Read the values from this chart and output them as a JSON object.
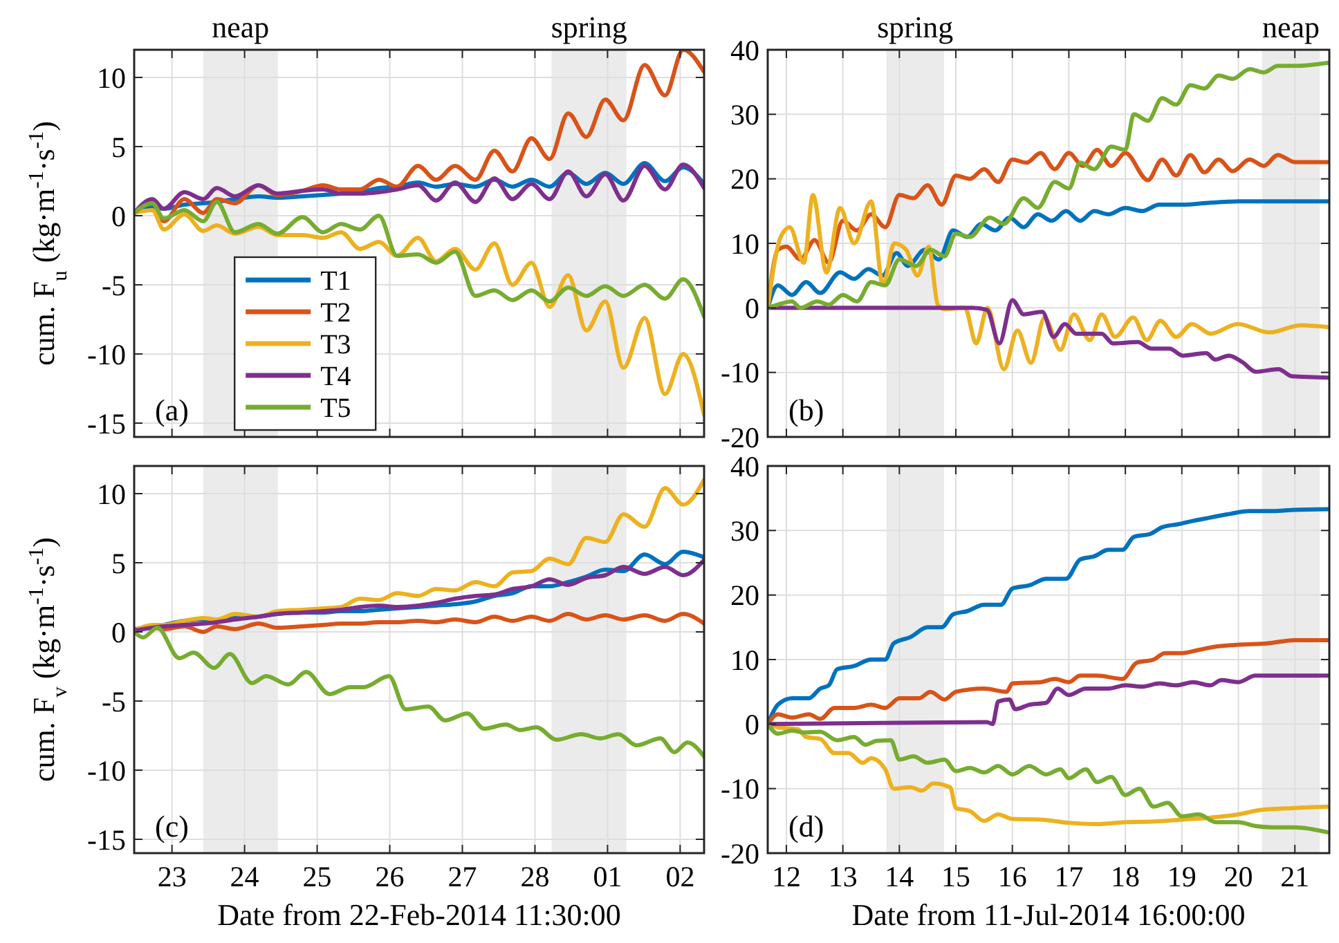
{
  "chart_data": [
    {
      "type": "line",
      "ylabel": "cum. F$_{u}$ (kg·m$^{-1}$·s$^{-1}$)",
      "annotations": [
        "(a)"
      ],
      "grid": true,
      "legend": "bottom",
      "tick_labels": "y",
      "xlim": [
        "2014-02-22T11:30",
        "2014-03-02T07:55"
      ],
      "xticks": [
        {
          "value": "2014-02-23",
          "label": null
        },
        {
          "value": "2014-02-24",
          "label": null
        },
        {
          "value": "2014-02-25",
          "label": null
        },
        {
          "value": "2014-02-26",
          "label": null
        },
        {
          "value": "2014-02-27",
          "label": null
        },
        {
          "value": "2014-02-28",
          "label": null
        },
        {
          "value": "2014-03-01",
          "label": null
        },
        {
          "value": "2014-03-02",
          "label": null
        }
      ],
      "ylim": [
        -16,
        12
      ],
      "yticks": [
        -15,
        -10,
        -5,
        0,
        5,
        10
      ],
      "bands": [
        {
          "axis": "x",
          "from": "2014-02-23T10:20",
          "to": "2014-02-24T11:00",
          "label": "neap",
          "color": "#ebebeb"
        },
        {
          "axis": "x",
          "from": "2014-02-28T05:30",
          "to": "2014-03-01T06:15",
          "label": "spring",
          "color": "#ebebeb"
        }
      ],
      "x": [
        "2014-02-22T11:30",
        "2014-02-22T17:30",
        "2014-02-22T21:20",
        "2014-02-23T04:05",
        "2014-02-23T10:20",
        "2014-02-23T14:50",
        "2014-02-23T20:50",
        "2014-02-24T04:35",
        "2014-02-24T10:50",
        "2014-02-24T19:10",
        "2014-02-25T01:55",
        "2014-02-25T07:55",
        "2014-02-25T14:10",
        "2014-02-25T20:25",
        "2014-02-26T02:25",
        "2014-02-26T09:20",
        "2014-02-26T15:20",
        "2014-02-26T21:35",
        "2014-02-27T04:20",
        "2014-02-27T10:35",
        "2014-02-27T16:35",
        "2014-02-27T22:50",
        "2014-02-28T04:50",
        "2014-02-28T11:00",
        "2014-02-28T17:00",
        "2014-02-28T23:15",
        "2014-03-01T05:15",
        "2014-03-01T12:15",
        "2014-03-01T19:00",
        "2014-03-02T01:00",
        "2014-03-02T07:55"
      ],
      "series": [
        {
          "name": "T1",
          "color": "#0072bd",
          "values": [
            0.2,
            0.6,
            0.5,
            0.8,
            0.9,
            1.0,
            1.2,
            1.4,
            1.3,
            1.4,
            1.5,
            1.6,
            1.7,
            2.0,
            2.1,
            2.4,
            2.1,
            2.3,
            2.1,
            2.6,
            2.1,
            2.6,
            2.1,
            3.1,
            2.3,
            3.1,
            2.3,
            3.8,
            2.5,
            3.5,
            2.3
          ]
        },
        {
          "name": "T2",
          "color": "#d95319",
          "values": [
            0.2,
            0.9,
            -0.4,
            1.2,
            0.2,
            1.2,
            0.9,
            2.2,
            1.5,
            1.8,
            2.2,
            1.9,
            1.9,
            2.6,
            2.1,
            3.6,
            2.6,
            3.6,
            2.6,
            4.7,
            3.2,
            5.6,
            4.1,
            7.4,
            5.7,
            8.4,
            6.9,
            10.9,
            8.7,
            12.0,
            10.4
          ]
        },
        {
          "name": "T3",
          "color": "#edb120",
          "values": [
            0.2,
            0.4,
            -1.0,
            0.1,
            -1.1,
            -0.7,
            -1.3,
            -0.8,
            -1.4,
            -1.4,
            -1.6,
            -1.2,
            -2.4,
            -1.9,
            -2.9,
            -1.6,
            -3.3,
            -2.4,
            -3.9,
            -2.0,
            -5.0,
            -3.4,
            -6.6,
            -4.3,
            -8.3,
            -6.2,
            -11.0,
            -7.4,
            -12.9,
            -10.0,
            -14.4
          ]
        },
        {
          "name": "T4",
          "color": "#7e2f8e",
          "values": [
            0.2,
            1.2,
            0.5,
            1.7,
            1.2,
            2.0,
            1.4,
            2.2,
            1.6,
            1.8,
            1.9,
            1.6,
            1.6,
            1.7,
            1.9,
            2.2,
            1.1,
            2.4,
            1.0,
            2.7,
            1.2,
            2.3,
            1.2,
            3.2,
            1.4,
            3.0,
            1.1,
            3.6,
            1.9,
            3.7,
            2.0
          ]
        },
        {
          "name": "T5",
          "color": "#77ac30",
          "values": [
            0.2,
            0.9,
            -0.2,
            0.4,
            -0.4,
            1.0,
            -1.2,
            -0.6,
            -1.3,
            -0.1,
            -1.2,
            -0.6,
            -1.0,
            0.0,
            -2.9,
            -2.8,
            -3.4,
            -2.6,
            -5.8,
            -5.4,
            -6.1,
            -5.4,
            -6.2,
            -5.2,
            -5.8,
            -5.1,
            -5.8,
            -5.0,
            -6.0,
            -4.6,
            -7.3
          ]
        }
      ]
    },
    {
      "type": "line",
      "annotations": [
        "(b)"
      ],
      "grid": true,
      "tick_labels": "y",
      "xlim": [
        11.67,
        21.61
      ],
      "xticks": [
        12,
        13,
        14,
        15,
        16,
        17,
        18,
        19,
        20,
        21
      ],
      "ylim": [
        -20,
        40
      ],
      "yticks": [
        -20,
        -10,
        0,
        10,
        20,
        30,
        40
      ],
      "bands": [
        {
          "axis": "x",
          "from": 13.77,
          "to": 14.79,
          "label": "spring",
          "color": "#ebebeb"
        },
        {
          "axis": "x",
          "from": 20.42,
          "to": 21.44,
          "label": "neap",
          "color": "#ebebeb"
        }
      ],
      "series": [
        {
          "color": "#0072bd",
          "x": [
            11.67,
            11.85,
            12.1,
            12.35,
            12.6,
            12.95,
            13.2,
            13.45,
            13.7,
            13.95,
            14.15,
            14.45,
            14.7,
            14.95,
            15.2,
            15.45,
            15.7,
            15.95,
            16.2,
            16.45,
            16.7,
            16.95,
            17.2,
            17.45,
            17.7,
            18.0,
            18.3,
            18.6,
            19.0,
            19.5,
            20.0,
            20.5,
            21.0,
            21.6
          ],
          "values": [
            0,
            3.5,
            2,
            4,
            2.3,
            5.5,
            4.5,
            6,
            5,
            8.5,
            6.5,
            9,
            7.5,
            12,
            11,
            13,
            12,
            14,
            12.5,
            14.5,
            13.5,
            15,
            13.5,
            15,
            14.5,
            15.5,
            15,
            16,
            16,
            16.3,
            16.5,
            16.5,
            16.5,
            16.5
          ]
        },
        {
          "color": "#d95319",
          "x": [
            11.67,
            11.85,
            12.0,
            12.25,
            12.5,
            12.75,
            13.0,
            13.25,
            13.5,
            13.75,
            14.0,
            14.25,
            14.5,
            14.75,
            15.0,
            15.25,
            15.5,
            15.75,
            16.0,
            16.25,
            16.5,
            16.75,
            17.0,
            17.25,
            17.5,
            17.75,
            18.0,
            18.4,
            18.65,
            18.9,
            19.15,
            19.4,
            19.65,
            19.9,
            20.2,
            20.45,
            20.7,
            21.0,
            21.6
          ],
          "values": [
            0,
            9,
            9.5,
            7.5,
            10.5,
            7,
            13.5,
            12,
            14.5,
            12.5,
            17.5,
            17,
            19,
            16,
            20.5,
            20,
            21.5,
            19.5,
            23,
            22.5,
            24,
            21.5,
            24,
            22,
            24.5,
            22,
            24,
            19.8,
            23,
            20.5,
            23.7,
            21,
            23,
            21.2,
            23,
            22,
            23.7,
            22.6,
            22.6
          ]
        },
        {
          "color": "#edb120",
          "x": [
            11.67,
            11.9,
            12.06,
            12.31,
            12.47,
            12.71,
            12.95,
            13.2,
            13.5,
            13.71,
            13.91,
            14.12,
            14.32,
            14.52,
            14.68,
            14.8,
            15.16,
            15.36,
            15.56,
            15.85,
            16.09,
            16.33,
            16.57,
            16.85,
            17.09,
            17.37,
            17.58,
            17.82,
            18.14,
            18.38,
            18.62,
            18.9,
            19.18,
            19.51,
            19.99,
            20.55,
            21.11,
            21.6
          ],
          "values": [
            0,
            11,
            12.5,
            7,
            17.5,
            5.5,
            15.5,
            10,
            16.5,
            3.5,
            10,
            9,
            5,
            9.5,
            0.5,
            -0.2,
            0,
            -5.5,
            0,
            -9.5,
            -3.5,
            -8.5,
            -1.5,
            -6.5,
            -1,
            -5,
            -1,
            -4.5,
            -1.5,
            -5,
            -2,
            -4.5,
            -2.5,
            -4,
            -2.5,
            -3.8,
            -2.7,
            -3
          ]
        },
        {
          "color": "#7e2f8e",
          "x": [
            11.67,
            15.3,
            15.55,
            15.77,
            16.0,
            16.2,
            16.53,
            16.73,
            16.93,
            17.13,
            17.58,
            17.78,
            18.22,
            18.46,
            18.78,
            19.02,
            19.43,
            19.59,
            19.83,
            20.07,
            20.31,
            20.71,
            20.95,
            21.6
          ],
          "values": [
            0,
            0,
            -0.3,
            -5.5,
            1.2,
            -1,
            -0.6,
            -4.5,
            -2.5,
            -4,
            -4,
            -5.5,
            -5.3,
            -6.3,
            -6.3,
            -7.4,
            -7,
            -8,
            -7.4,
            -8.4,
            -9.9,
            -9.5,
            -10.6,
            -10.8
          ]
        },
        {
          "color": "#77ac30",
          "x": [
            11.67,
            11.85,
            12.1,
            12.25,
            12.55,
            12.75,
            13.0,
            13.25,
            13.5,
            13.75,
            14.0,
            14.3,
            14.55,
            14.8,
            15.0,
            15.25,
            15.6,
            15.85,
            16.2,
            16.45,
            16.75,
            17.0,
            17.2,
            17.45,
            17.75,
            18.0,
            18.15,
            18.4,
            18.65,
            18.9,
            19.15,
            19.4,
            19.65,
            19.9,
            20.2,
            20.45,
            20.7,
            21.0,
            21.6
          ],
          "values": [
            0,
            0.5,
            1,
            0,
            1,
            0.5,
            2,
            1,
            4,
            3.5,
            7.5,
            6.5,
            9,
            8,
            11.5,
            11,
            14,
            13,
            17,
            15.5,
            19.5,
            18.5,
            22.5,
            21.5,
            25,
            24.5,
            30,
            29,
            32.5,
            31.5,
            34.5,
            34,
            36,
            35.5,
            37,
            36.5,
            37.5,
            37.5,
            38
          ]
        }
      ]
    },
    {
      "type": "line",
      "xlabel": "Date from 22-Feb-2014 11:30:00",
      "ylabel": "cum. F$_{v}$ (kg·m$^{-1}$·s$^{-1}$)",
      "annotations": [
        "(c)"
      ],
      "grid": true,
      "xlim": [
        "2014-02-22T11:30",
        "2014-03-02T07:55"
      ],
      "xticks": [
        {
          "value": "2014-02-23",
          "label": "23"
        },
        {
          "value": "2014-02-24",
          "label": "24"
        },
        {
          "value": "2014-02-25",
          "label": "25"
        },
        {
          "value": "2014-02-26",
          "label": "26"
        },
        {
          "value": "2014-02-27",
          "label": "27"
        },
        {
          "value": "2014-02-28",
          "label": "28"
        },
        {
          "value": "2014-03-01",
          "label": "01"
        },
        {
          "value": "2014-03-02",
          "label": "02"
        }
      ],
      "ylim": [
        -16,
        12
      ],
      "yticks": [
        -15,
        -10,
        -5,
        0,
        5,
        10
      ],
      "bands": [
        {
          "axis": "x",
          "from": "2014-02-23T10:20",
          "to": "2014-02-24T11:00",
          "color": "#ebebeb"
        },
        {
          "axis": "x",
          "from": "2014-02-28T05:30",
          "to": "2014-03-01T06:15",
          "color": "#ebebeb"
        }
      ],
      "x": [
        "2014-02-22T11:30",
        "2014-02-22T17:30",
        "2014-02-22T21:20",
        "2014-02-23T04:05",
        "2014-02-23T10:20",
        "2014-02-23T14:50",
        "2014-02-23T20:50",
        "2014-02-24T04:35",
        "2014-02-24T10:50",
        "2014-02-24T19:10",
        "2014-02-25T01:55",
        "2014-02-25T07:55",
        "2014-02-25T14:10",
        "2014-02-25T20:25",
        "2014-02-26T02:25",
        "2014-02-26T09:20",
        "2014-02-26T15:20",
        "2014-02-26T21:35",
        "2014-02-27T04:20",
        "2014-02-27T10:35",
        "2014-02-27T16:35",
        "2014-02-27T22:50",
        "2014-02-28T04:50",
        "2014-02-28T11:00",
        "2014-02-28T17:00",
        "2014-02-28T23:15",
        "2014-03-01T05:15",
        "2014-03-01T12:15",
        "2014-03-01T19:00",
        "2014-03-02T01:00",
        "2014-03-02T07:55"
      ],
      "series": [
        {
          "color": "#0072bd",
          "values": [
            null,
            null,
            0.5,
            0.8,
            0.9,
            0.9,
            1.0,
            1.1,
            1.3,
            1.4,
            1.4,
            1.5,
            1.5,
            1.6,
            1.7,
            1.8,
            1.9,
            2.0,
            2.2,
            2.6,
            2.8,
            3.3,
            3.3,
            3.6,
            4.0,
            4.5,
            4.4,
            5.6,
            4.9,
            5.8,
            5.4
          ]
        },
        {
          "color": "#d95319",
          "values": [
            0.2,
            0.3,
            0.2,
            0.4,
            0.0,
            0.4,
            0.2,
            0.6,
            0.3,
            0.4,
            0.5,
            0.6,
            0.6,
            0.7,
            0.7,
            0.8,
            0.7,
            0.9,
            0.7,
            1.1,
            0.8,
            1.1,
            0.8,
            1.3,
            0.9,
            1.2,
            0.9,
            1.2,
            0.8,
            1.3,
            0.6
          ]
        },
        {
          "color": "#edb120",
          "values": [
            0.1,
            0.5,
            0.5,
            0.8,
            1.0,
            0.9,
            1.3,
            1.1,
            1.5,
            1.6,
            1.7,
            1.8,
            2.4,
            2.3,
            2.8,
            2.6,
            3.1,
            3.0,
            3.6,
            3.3,
            4.3,
            4.4,
            5.3,
            4.9,
            6.8,
            6.5,
            8.5,
            7.6,
            10.4,
            9.2,
            11.0
          ]
        },
        {
          "color": "#7e2f8e",
          "values": [
            0.1,
            0.3,
            0.4,
            0.5,
            0.6,
            0.7,
            0.9,
            1.1,
            1.3,
            1.4,
            1.5,
            1.6,
            1.8,
            1.9,
            1.8,
            1.9,
            2.1,
            2.4,
            2.6,
            2.7,
            3.1,
            3.3,
            3.8,
            3.4,
            3.9,
            4.1,
            4.7,
            4.2,
            4.7,
            4.1,
            5.2
          ]
        },
        {
          "color": "#77ac30",
          "x": [
            "2014-02-22T11:30",
            "2014-02-22T14:25",
            "2014-02-22T19:10",
            "2014-02-23T02:25",
            "2014-02-23T07:10",
            "2014-02-23T13:55",
            "2014-02-23T19:10",
            "2014-02-24T02:25",
            "2014-02-24T07:10",
            "2014-02-24T14:25",
            "2014-02-24T20:25",
            "2014-02-25T04:05",
            "2014-02-25T10:50",
            "2014-02-25T15:20",
            "2014-02-25T23:45",
            "2014-02-26T05:15",
            "2014-02-26T12:45",
            "2014-02-26T18:15",
            "2014-02-27T01:40",
            "2014-02-27T07:10",
            "2014-02-27T14:25",
            "2014-02-27T19:10",
            "2014-02-28T00:30",
            "2014-02-28T07:10",
            "2014-02-28T15:20",
            "2014-02-28T21:35",
            "2014-03-01T03:35",
            "2014-03-01T09:35",
            "2014-03-01T17:30",
            "2014-03-01T22:05",
            "2014-03-02T02:25",
            "2014-03-02T07:55"
          ],
          "values": [
            0,
            -0.4,
            0.3,
            -1.9,
            -1.5,
            -2.6,
            -1.6,
            -3.7,
            -3.2,
            -3.8,
            -2.9,
            -4.5,
            -4.0,
            -4.0,
            -3.2,
            -5.6,
            -5.4,
            -6.4,
            -5.9,
            -7.0,
            -6.7,
            -7.1,
            -6.9,
            -7.8,
            -7.4,
            -7.7,
            -7.4,
            -8.2,
            -7.7,
            -8.7,
            -8.0,
            -9.0
          ]
        }
      ]
    },
    {
      "type": "line",
      "xlabel": "Date from 11-Jul-2014 16:00:00",
      "annotations": [
        "(d)"
      ],
      "grid": true,
      "xlim": [
        11.67,
        21.61
      ],
      "xticks": [
        12,
        13,
        14,
        15,
        16,
        17,
        18,
        19,
        20,
        21
      ],
      "ylim": [
        -20,
        40
      ],
      "yticks": [
        -20,
        -10,
        0,
        10,
        20,
        30,
        40
      ],
      "bands": [
        {
          "axis": "x",
          "from": 13.77,
          "to": 14.79,
          "color": "#ebebeb"
        },
        {
          "axis": "x",
          "from": 20.42,
          "to": 21.44,
          "color": "#ebebeb"
        }
      ],
      "series": [
        {
          "color": "#0072bd",
          "x": [
            11.67,
            11.85,
            12.1,
            12.4,
            12.6,
            12.75,
            12.9,
            13.2,
            13.5,
            13.75,
            13.9,
            14.2,
            14.5,
            14.75,
            14.95,
            15.2,
            15.5,
            15.8,
            16.0,
            16.3,
            16.6,
            16.95,
            17.2,
            17.45,
            17.7,
            17.95,
            18.15,
            18.45,
            18.65,
            18.95,
            19.2,
            19.5,
            19.8,
            20.2,
            20.6,
            21.0,
            21.6
          ],
          "values": [
            0,
            3,
            4,
            4,
            5.5,
            6,
            8.5,
            9,
            10,
            10,
            12.5,
            13.5,
            15,
            15,
            17,
            17.5,
            18.5,
            18.5,
            21,
            21.5,
            22.5,
            22.5,
            25.5,
            26,
            27,
            27,
            29,
            29.5,
            30.5,
            31,
            31.5,
            32,
            32.5,
            33,
            33,
            33.2,
            33.3
          ]
        },
        {
          "color": "#d95319",
          "x": [
            11.67,
            11.85,
            12.1,
            12.4,
            12.6,
            12.85,
            13.2,
            13.5,
            13.75,
            14.0,
            14.35,
            14.55,
            14.8,
            15.0,
            15.5,
            15.9,
            16.0,
            16.5,
            16.75,
            17.0,
            17.2,
            17.5,
            17.95,
            18.2,
            18.5,
            18.7,
            19.0,
            19.3,
            19.6,
            20.0,
            20.5,
            21.0,
            21.6
          ],
          "values": [
            0,
            1.5,
            1,
            1.5,
            0.8,
            2.5,
            2.5,
            3,
            2.5,
            4,
            4,
            5,
            3.8,
            5,
            5.5,
            5,
            6.3,
            6.5,
            7,
            6.5,
            7.5,
            7.5,
            7,
            9.5,
            10,
            11,
            11,
            11.5,
            12,
            12.3,
            12.5,
            13,
            13
          ]
        },
        {
          "color": "#edb120",
          "x": [
            11.67,
            11.85,
            12.2,
            12.35,
            12.6,
            12.85,
            13.1,
            13.35,
            13.5,
            13.75,
            13.9,
            14.2,
            14.4,
            14.6,
            14.9,
            15.0,
            15.25,
            15.5,
            15.75,
            16.0,
            16.5,
            17.0,
            17.5,
            18.0,
            18.5,
            19.0,
            19.5,
            20.0,
            20.4,
            21.0,
            21.6
          ],
          "values": [
            0,
            -0.5,
            -0.8,
            -2,
            -2.3,
            -4.5,
            -4.5,
            -6,
            -5.3,
            -7,
            -10,
            -9.8,
            -10.3,
            -9.2,
            -9.8,
            -13,
            -13.5,
            -15,
            -14,
            -14.7,
            -14.8,
            -15.3,
            -15.5,
            -15.2,
            -15.1,
            -14.8,
            -14.5,
            -14,
            -13.3,
            -13,
            -12.8
          ]
        },
        {
          "color": "#7e2f8e",
          "x": [
            11.67,
            15.55,
            15.65,
            15.75,
            15.95,
            16.05,
            16.3,
            16.6,
            16.8,
            17.0,
            17.3,
            17.7,
            18.0,
            18.3,
            18.6,
            18.9,
            19.2,
            19.5,
            19.7,
            20.0,
            20.3,
            20.8,
            21.6
          ],
          "values": [
            0,
            0.3,
            0,
            3.5,
            3.8,
            2.3,
            3,
            3.3,
            5.5,
            4.5,
            5.5,
            5.5,
            6,
            5.8,
            6.3,
            6,
            6.5,
            6,
            6.8,
            6.5,
            7.5,
            7.5,
            7.5
          ]
        },
        {
          "color": "#77ac30",
          "x": [
            11.67,
            11.85,
            12.1,
            12.3,
            12.6,
            12.9,
            13.2,
            13.4,
            13.6,
            13.85,
            14.0,
            14.25,
            14.5,
            14.8,
            15.0,
            15.25,
            15.5,
            15.75,
            16.0,
            16.3,
            16.6,
            16.85,
            17.0,
            17.3,
            17.5,
            17.75,
            18.0,
            18.25,
            18.5,
            18.75,
            19.0,
            19.3,
            19.6,
            20.0,
            20.3,
            20.6,
            21.0,
            21.6
          ],
          "values": [
            0,
            -1.5,
            -1,
            -1.3,
            -1.2,
            -2.5,
            -2,
            -3.2,
            -2.6,
            -2.5,
            -5.5,
            -5,
            -6,
            -5.5,
            -7.3,
            -6.8,
            -7.5,
            -6.5,
            -7.8,
            -6.5,
            -7.8,
            -7,
            -8.4,
            -7,
            -9,
            -8.2,
            -11,
            -10,
            -12.8,
            -12.2,
            -14.3,
            -14,
            -15.2,
            -15.2,
            -15.8,
            -16,
            -16,
            -16.8
          ]
        }
      ]
    }
  ]
}
